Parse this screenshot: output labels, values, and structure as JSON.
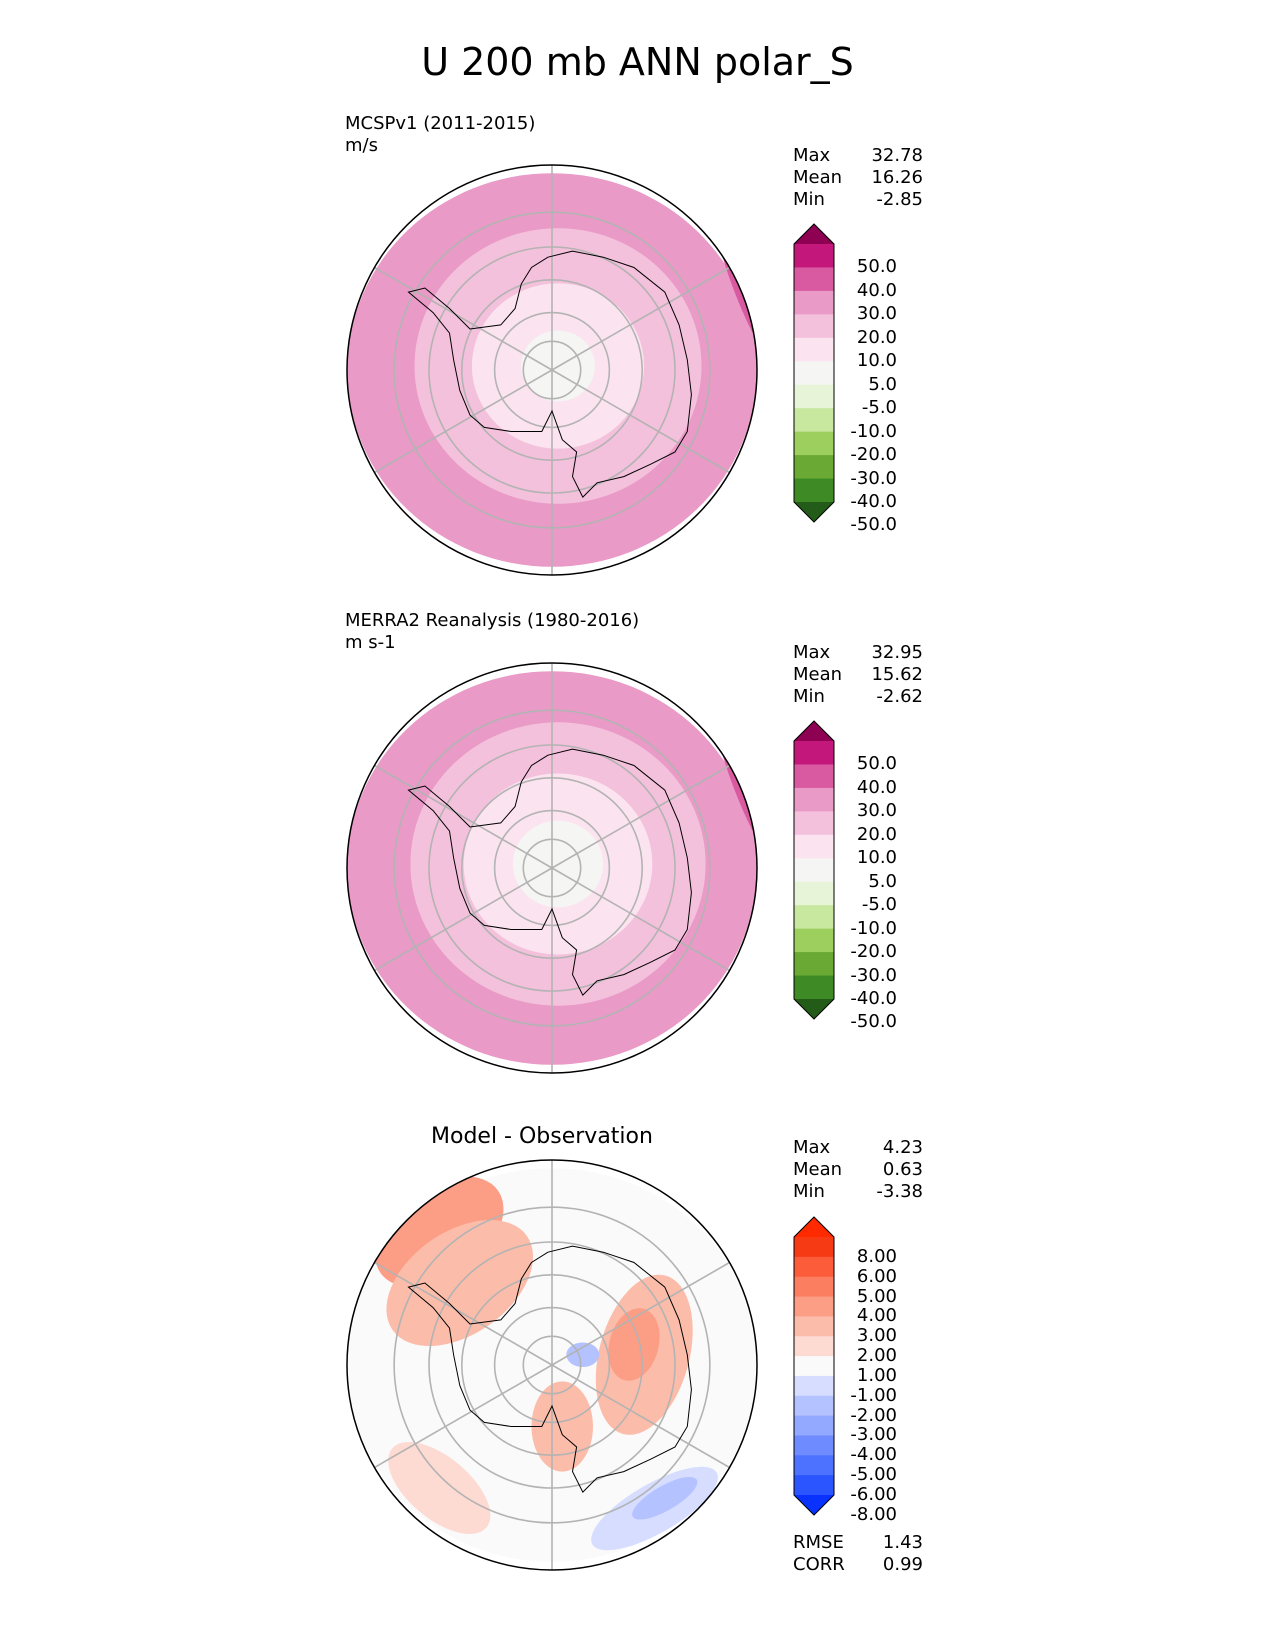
{
  "title": "U 200 mb ANN polar_S",
  "chart_data": [
    {
      "type": "heatmap",
      "projection": "south-polar-stereographic",
      "panel": "test",
      "name": "MCSPv1 (2011-2015)",
      "units": "m/s",
      "stats": {
        "max_label": "Max",
        "max": "32.78",
        "mean_label": "Mean",
        "mean": "16.26",
        "min_label": "Min",
        "min": "-2.85"
      },
      "contour_levels": [
        "-50.0",
        "-40.0",
        "-30.0",
        "-20.0",
        "-10.0",
        "-5.0",
        "5.0",
        "10.0",
        "20.0",
        "30.0",
        "40.0",
        "50.0"
      ],
      "colormap": [
        "#235c18",
        "#3e8a24",
        "#6aaa34",
        "#9ccf5d",
        "#c8e8a0",
        "#e8f4d8",
        "#f5f5f4",
        "#fbe4ef",
        "#f4c1dc",
        "#e99ac6",
        "#d95aa1",
        "#c3177b",
        "#8e0152"
      ],
      "rings": [
        {
          "r": 0.18,
          "color_idx": 6
        },
        {
          "r": 0.42,
          "color_idx": 7
        },
        {
          "r": 0.7,
          "color_idx": 8
        },
        {
          "r": 1.0,
          "color_idx": 9
        }
      ]
    },
    {
      "type": "heatmap",
      "projection": "south-polar-stereographic",
      "panel": "reference",
      "name": "MERRA2 Reanalysis (1980-2016)",
      "units": "m s-1",
      "stats": {
        "max_label": "Max",
        "max": "32.95",
        "mean_label": "Mean",
        "mean": "15.62",
        "min_label": "Min",
        "min": "-2.62"
      },
      "contour_levels": [
        "-50.0",
        "-40.0",
        "-30.0",
        "-20.0",
        "-10.0",
        "-5.0",
        "5.0",
        "10.0",
        "20.0",
        "30.0",
        "40.0",
        "50.0"
      ],
      "colormap": [
        "#235c18",
        "#3e8a24",
        "#6aaa34",
        "#9ccf5d",
        "#c8e8a0",
        "#e8f4d8",
        "#f5f5f4",
        "#fbe4ef",
        "#f4c1dc",
        "#e99ac6",
        "#d95aa1",
        "#c3177b",
        "#8e0152"
      ],
      "rings": [
        {
          "r": 0.22,
          "color_idx": 6
        },
        {
          "r": 0.46,
          "color_idx": 7
        },
        {
          "r": 0.72,
          "color_idx": 8
        },
        {
          "r": 1.0,
          "color_idx": 9
        }
      ]
    },
    {
      "type": "heatmap",
      "projection": "south-polar-stereographic",
      "panel": "diff",
      "name": "Model - Observation",
      "stats": {
        "max_label": "Max",
        "max": "4.23",
        "mean_label": "Mean",
        "mean": "0.63",
        "min_label": "Min",
        "min": "-3.38"
      },
      "metrics": {
        "rmse_label": "RMSE",
        "rmse": "1.43",
        "corr_label": "CORR",
        "corr": "0.99"
      },
      "contour_levels": [
        "-8.00",
        "-6.00",
        "-5.00",
        "-4.00",
        "-3.00",
        "-2.00",
        "-1.00",
        "1.00",
        "2.00",
        "3.00",
        "4.00",
        "5.00",
        "6.00",
        "8.00"
      ],
      "colormap": [
        "#0a32ff",
        "#2b56ff",
        "#4c72ff",
        "#6e8cff",
        "#93a9ff",
        "#b4c2ff",
        "#d6ddff",
        "#fafafa",
        "#fddad2",
        "#fcbcaa",
        "#fc9d85",
        "#fc7e60",
        "#fc5c3a",
        "#f63a14",
        "#ff2a00"
      ],
      "rings": [
        {
          "r": 1.0,
          "color_idx": 7
        }
      ]
    }
  ]
}
